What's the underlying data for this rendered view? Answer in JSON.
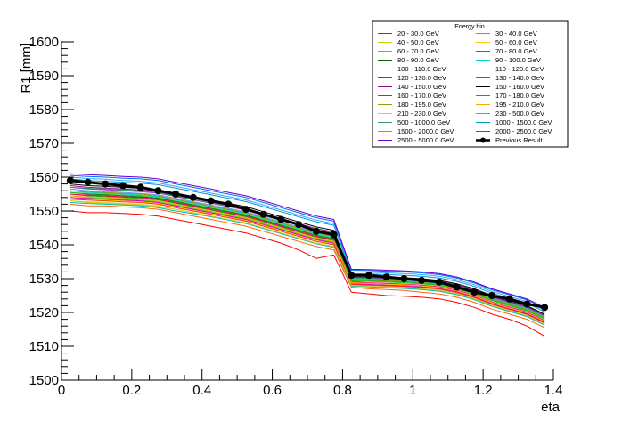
{
  "chart_data": {
    "type": "line",
    "title": "",
    "xlabel": "eta",
    "ylabel": "R1 [mm]",
    "xlim": [
      0,
      1.4
    ],
    "ylim": [
      1500,
      1600
    ],
    "x_ticks": [
      "0",
      "0.2",
      "0.4",
      "0.6",
      "0.8",
      "1",
      "1.2",
      "1.4"
    ],
    "y_ticks": [
      "1500",
      "1510",
      "1520",
      "1530",
      "1540",
      "1550",
      "1560",
      "1570",
      "1580",
      "1590",
      "1600"
    ],
    "legend_title": "Energy bin",
    "legend_position": "top-right",
    "x": [
      0.025,
      0.075,
      0.125,
      0.175,
      0.225,
      0.275,
      0.325,
      0.375,
      0.425,
      0.475,
      0.525,
      0.575,
      0.625,
      0.675,
      0.725,
      0.775,
      0.825,
      0.875,
      0.925,
      0.975,
      1.025,
      1.075,
      1.125,
      1.175,
      1.225,
      1.275,
      1.325,
      1.375
    ],
    "series": [
      {
        "name": "20 - 30.0 GeV",
        "color": "#ff0000",
        "values": [
          1550.0,
          1549.5,
          1549.5,
          1549.3,
          1549.0,
          1548.5,
          1547.5,
          1546.5,
          1545.5,
          1544.5,
          1543.5,
          1542.0,
          1540.5,
          1538.5,
          1536.0,
          1537.0,
          1526.0,
          1525.5,
          1525.0,
          1524.8,
          1524.5,
          1524.0,
          1523.0,
          1521.5,
          1519.5,
          1518.0,
          1516.0,
          1513.0
        ]
      },
      {
        "name": "30 - 40.0 GeV",
        "color": "#ff6600",
        "values": [
          1552.0,
          1551.5,
          1551.5,
          1551.2,
          1551.0,
          1550.5,
          1549.5,
          1548.5,
          1547.5,
          1546.5,
          1545.5,
          1544.0,
          1542.5,
          1541.0,
          1539.5,
          1538.5,
          1527.5,
          1527.0,
          1526.8,
          1526.5,
          1526.0,
          1525.5,
          1524.5,
          1523.0,
          1521.0,
          1519.5,
          1518.0,
          1515.5
        ]
      },
      {
        "name": "40 - 50.0 GeV",
        "color": "#cccc00",
        "values": [
          1553.0,
          1552.5,
          1552.3,
          1552.0,
          1551.8,
          1551.3,
          1550.5,
          1549.5,
          1548.5,
          1547.5,
          1546.5,
          1545.0,
          1543.5,
          1542.0,
          1540.5,
          1539.5,
          1528.0,
          1527.8,
          1527.5,
          1527.3,
          1527.0,
          1526.5,
          1525.5,
          1524.0,
          1522.0,
          1520.5,
          1519.0,
          1516.5
        ]
      },
      {
        "name": "50 - 60.0 GeV",
        "color": "#ffcc00",
        "values": [
          1554.0,
          1553.5,
          1553.2,
          1553.0,
          1552.8,
          1552.2,
          1551.3,
          1550.3,
          1549.3,
          1548.2,
          1547.2,
          1545.8,
          1544.3,
          1542.8,
          1541.3,
          1540.3,
          1528.5,
          1528.3,
          1528.0,
          1527.8,
          1527.5,
          1527.0,
          1526.0,
          1524.5,
          1522.5,
          1521.0,
          1519.5,
          1517.0
        ]
      },
      {
        "name": "60 - 70.0 GeV",
        "color": "#66cc00",
        "values": [
          1554.5,
          1554.0,
          1553.8,
          1553.5,
          1553.2,
          1552.8,
          1551.8,
          1550.8,
          1549.8,
          1548.8,
          1547.8,
          1546.3,
          1544.8,
          1543.3,
          1541.8,
          1540.8,
          1529.0,
          1528.8,
          1528.5,
          1528.3,
          1528.0,
          1527.5,
          1526.5,
          1525.0,
          1523.0,
          1521.5,
          1520.0,
          1517.5
        ]
      },
      {
        "name": "70 - 80.0 GeV",
        "color": "#00aa00",
        "values": [
          1555.0,
          1554.5,
          1554.3,
          1554.0,
          1553.7,
          1553.3,
          1552.3,
          1551.3,
          1550.3,
          1549.3,
          1548.3,
          1546.8,
          1545.3,
          1543.8,
          1542.3,
          1541.3,
          1529.3,
          1529.2,
          1529.0,
          1528.8,
          1528.5,
          1528.0,
          1527.0,
          1525.5,
          1523.5,
          1522.0,
          1520.5,
          1518.0
        ]
      },
      {
        "name": "80 - 90.0 GeV",
        "color": "#006600",
        "values": [
          1555.5,
          1555.0,
          1554.8,
          1554.5,
          1554.2,
          1553.8,
          1552.8,
          1551.8,
          1550.8,
          1549.8,
          1548.8,
          1547.3,
          1545.8,
          1544.3,
          1542.8,
          1541.8,
          1529.5,
          1529.4,
          1529.2,
          1529.0,
          1528.7,
          1528.2,
          1527.2,
          1525.7,
          1523.7,
          1522.2,
          1520.7,
          1518.2
        ]
      },
      {
        "name": "90 - 100.0 GeV",
        "color": "#00cccc",
        "values": [
          1556.0,
          1555.5,
          1555.3,
          1555.0,
          1554.7,
          1554.3,
          1553.3,
          1552.3,
          1551.3,
          1550.3,
          1549.3,
          1547.8,
          1546.3,
          1544.8,
          1543.3,
          1542.3,
          1529.8,
          1529.7,
          1529.5,
          1529.3,
          1529.0,
          1528.5,
          1527.5,
          1526.0,
          1524.0,
          1522.5,
          1521.0,
          1518.5
        ]
      },
      {
        "name": "100 - 110.0 GeV",
        "color": "#00bbbb",
        "values": [
          1552.5,
          1552.2,
          1552.0,
          1551.8,
          1551.5,
          1551.0,
          1550.0,
          1549.2,
          1548.3,
          1547.3,
          1546.3,
          1544.8,
          1543.3,
          1541.8,
          1540.3,
          1539.3,
          1527.8,
          1527.6,
          1527.3,
          1527.1,
          1526.8,
          1526.3,
          1525.3,
          1523.8,
          1521.8,
          1520.3,
          1518.8,
          1516.3
        ]
      },
      {
        "name": "110 - 120.0 GeV",
        "color": "#6699ff",
        "values": [
          1556.5,
          1556.0,
          1555.8,
          1555.5,
          1555.2,
          1554.8,
          1553.8,
          1552.8,
          1551.8,
          1550.8,
          1549.8,
          1548.3,
          1546.8,
          1545.3,
          1543.8,
          1542.8,
          1530.0,
          1529.9,
          1529.7,
          1529.5,
          1529.2,
          1528.7,
          1527.7,
          1526.2,
          1524.2,
          1522.7,
          1521.2,
          1518.7
        ]
      },
      {
        "name": "120 - 130.0 GeV",
        "color": "#cc00cc",
        "values": [
          1554.0,
          1553.7,
          1553.5,
          1553.2,
          1553.0,
          1552.5,
          1551.5,
          1550.5,
          1549.5,
          1548.5,
          1547.5,
          1546.0,
          1544.5,
          1543.0,
          1541.5,
          1540.5,
          1528.5,
          1528.3,
          1528.1,
          1527.9,
          1527.6,
          1527.1,
          1526.1,
          1524.6,
          1522.6,
          1521.1,
          1519.6,
          1517.1
        ]
      },
      {
        "name": "130 - 140.0 GeV",
        "color": "#9933cc",
        "values": [
          1557.0,
          1556.5,
          1556.3,
          1556.0,
          1555.7,
          1555.3,
          1554.3,
          1553.3,
          1552.3,
          1551.3,
          1550.3,
          1548.8,
          1547.3,
          1545.8,
          1544.3,
          1543.3,
          1530.3,
          1530.2,
          1530.0,
          1529.8,
          1529.5,
          1529.0,
          1528.0,
          1526.5,
          1524.5,
          1523.0,
          1521.5,
          1519.0
        ]
      },
      {
        "name": "140 - 150.0 GeV",
        "color": "#990099",
        "values": [
          1557.5,
          1557.0,
          1556.8,
          1556.5,
          1556.2,
          1555.8,
          1554.8,
          1553.8,
          1552.8,
          1551.8,
          1550.8,
          1549.3,
          1547.8,
          1546.3,
          1544.8,
          1543.8,
          1530.5,
          1530.4,
          1530.2,
          1530.0,
          1529.7,
          1529.2,
          1528.2,
          1526.7,
          1524.7,
          1523.2,
          1521.7,
          1519.2
        ]
      },
      {
        "name": "150 - 160.0 GeV",
        "color": "#000000",
        "values": [
          1558.0,
          1557.5,
          1557.3,
          1557.0,
          1556.7,
          1556.3,
          1555.3,
          1554.3,
          1553.3,
          1552.3,
          1551.3,
          1549.8,
          1548.3,
          1546.8,
          1545.3,
          1544.3,
          1530.8,
          1530.7,
          1530.5,
          1530.3,
          1530.0,
          1529.5,
          1528.5,
          1527.0,
          1525.0,
          1523.5,
          1522.0,
          1519.5
        ]
      },
      {
        "name": "160 - 170.0 GeV",
        "color": "#ff0066",
        "values": [
          1555.0,
          1554.7,
          1554.5,
          1554.2,
          1554.0,
          1553.5,
          1552.5,
          1551.5,
          1550.5,
          1549.5,
          1548.5,
          1547.0,
          1545.5,
          1544.0,
          1542.5,
          1541.5,
          1529.0,
          1528.8,
          1528.6,
          1528.4,
          1528.1,
          1527.6,
          1526.6,
          1525.1,
          1523.1,
          1521.6,
          1520.1,
          1517.6
        ]
      },
      {
        "name": "170 - 180.0 GeV",
        "color": "#ff3300",
        "values": [
          1553.5,
          1553.2,
          1553.0,
          1552.7,
          1552.5,
          1552.0,
          1551.0,
          1550.0,
          1549.0,
          1548.0,
          1547.0,
          1545.5,
          1544.0,
          1542.5,
          1541.0,
          1540.0,
          1528.3,
          1528.1,
          1527.9,
          1527.7,
          1527.4,
          1526.9,
          1525.9,
          1524.4,
          1522.4,
          1520.9,
          1519.4,
          1516.9
        ]
      },
      {
        "name": "180 - 195.0 GeV",
        "color": "#999900",
        "values": [
          1556.0,
          1555.7,
          1555.5,
          1555.2,
          1555.0,
          1554.5,
          1553.5,
          1552.5,
          1551.5,
          1550.5,
          1549.5,
          1548.0,
          1546.5,
          1545.0,
          1543.5,
          1542.5,
          1529.7,
          1529.6,
          1529.4,
          1529.2,
          1528.9,
          1528.4,
          1527.4,
          1525.9,
          1523.9,
          1522.4,
          1520.9,
          1518.4
        ]
      },
      {
        "name": "195 - 210.0 GeV",
        "color": "#ffaa00",
        "values": [
          1554.5,
          1554.2,
          1554.0,
          1553.7,
          1553.5,
          1553.0,
          1552.0,
          1551.0,
          1550.0,
          1549.0,
          1548.0,
          1546.5,
          1545.0,
          1543.5,
          1542.0,
          1541.0,
          1528.8,
          1528.6,
          1528.4,
          1528.2,
          1527.9,
          1527.4,
          1526.4,
          1524.9,
          1522.9,
          1521.4,
          1519.9,
          1517.4
        ]
      },
      {
        "name": "210 - 230.0 GeV",
        "color": "#cccc33",
        "values": [
          1553.0,
          1552.7,
          1552.5,
          1552.2,
          1552.0,
          1551.5,
          1550.5,
          1549.5,
          1548.5,
          1547.5,
          1546.5,
          1545.0,
          1543.5,
          1542.0,
          1540.5,
          1539.5,
          1528.0,
          1527.8,
          1527.6,
          1527.4,
          1527.1,
          1526.6,
          1525.6,
          1524.1,
          1522.1,
          1520.6,
          1519.1,
          1516.6
        ]
      },
      {
        "name": "230 - 500.0 GeV",
        "color": "#33cc33",
        "values": [
          1555.5,
          1555.2,
          1555.0,
          1554.7,
          1554.5,
          1554.0,
          1553.0,
          1552.0,
          1551.0,
          1550.0,
          1549.0,
          1547.5,
          1546.0,
          1544.5,
          1543.0,
          1542.0,
          1529.5,
          1529.3,
          1529.1,
          1528.9,
          1528.6,
          1528.1,
          1527.1,
          1525.6,
          1523.6,
          1522.1,
          1520.6,
          1518.1
        ]
      },
      {
        "name": "500 - 1000.0 GeV",
        "color": "#339966",
        "values": [
          1557.0,
          1556.7,
          1556.5,
          1556.2,
          1556.0,
          1555.5,
          1554.5,
          1553.5,
          1552.5,
          1551.5,
          1550.5,
          1549.0,
          1547.5,
          1546.0,
          1544.5,
          1543.5,
          1530.2,
          1530.1,
          1529.9,
          1529.7,
          1529.4,
          1528.9,
          1527.9,
          1526.4,
          1524.4,
          1522.9,
          1521.4,
          1518.9
        ]
      },
      {
        "name": "1000 - 1500.0 GeV",
        "color": "#0099cc",
        "values": [
          1559.5,
          1559.0,
          1558.8,
          1558.5,
          1558.2,
          1557.8,
          1556.8,
          1555.8,
          1554.8,
          1553.8,
          1552.8,
          1551.3,
          1549.8,
          1548.3,
          1546.8,
          1545.8,
          1531.5,
          1531.4,
          1531.2,
          1531.0,
          1530.7,
          1530.2,
          1529.2,
          1527.7,
          1525.7,
          1524.2,
          1522.7,
          1520.2
        ]
      },
      {
        "name": "1500 - 2000.0 GeV",
        "color": "#33aaff",
        "values": [
          1560.0,
          1559.6,
          1559.4,
          1559.0,
          1558.8,
          1558.3,
          1557.3,
          1556.3,
          1555.3,
          1554.3,
          1553.3,
          1551.8,
          1550.3,
          1548.8,
          1547.3,
          1546.3,
          1532.0,
          1531.9,
          1531.7,
          1531.5,
          1531.2,
          1530.7,
          1529.7,
          1528.2,
          1526.2,
          1524.7,
          1523.2,
          1520.7
        ]
      },
      {
        "name": "2000 - 2500.0 GeV",
        "color": "#0066ff",
        "values": [
          1560.5,
          1560.2,
          1560.0,
          1559.7,
          1559.5,
          1559.0,
          1558.0,
          1557.0,
          1556.0,
          1555.0,
          1554.0,
          1552.5,
          1551.0,
          1549.5,
          1548.0,
          1547.0,
          1532.5,
          1532.4,
          1532.2,
          1532.0,
          1531.7,
          1531.2,
          1530.2,
          1528.7,
          1526.7,
          1525.2,
          1523.7,
          1521.2
        ]
      },
      {
        "name": "2500 - 5000.0 GeV",
        "color": "#6600cc",
        "values": [
          1561.0,
          1560.7,
          1560.5,
          1560.2,
          1560.0,
          1559.5,
          1558.5,
          1557.5,
          1556.5,
          1555.5,
          1554.5,
          1553.0,
          1551.5,
          1550.0,
          1548.5,
          1547.5,
          1532.8,
          1532.7,
          1532.5,
          1532.3,
          1532.0,
          1531.5,
          1530.5,
          1529.0,
          1527.0,
          1525.5,
          1524.0,
          1521.5
        ]
      },
      {
        "name": "Previous Result",
        "color": "#000000",
        "marker": "circle",
        "values": [
          1559.0,
          1558.5,
          1558.0,
          1557.5,
          1557.0,
          1556.0,
          1555.0,
          1554.0,
          1553.0,
          1552.0,
          1550.5,
          1549.0,
          1547.5,
          1546.0,
          1544.0,
          1543.0,
          1531.0,
          1531.0,
          1530.5,
          1530.0,
          1529.5,
          1529.0,
          1527.5,
          1526.0,
          1525.0,
          1524.0,
          1522.5,
          1521.5
        ]
      }
    ]
  }
}
